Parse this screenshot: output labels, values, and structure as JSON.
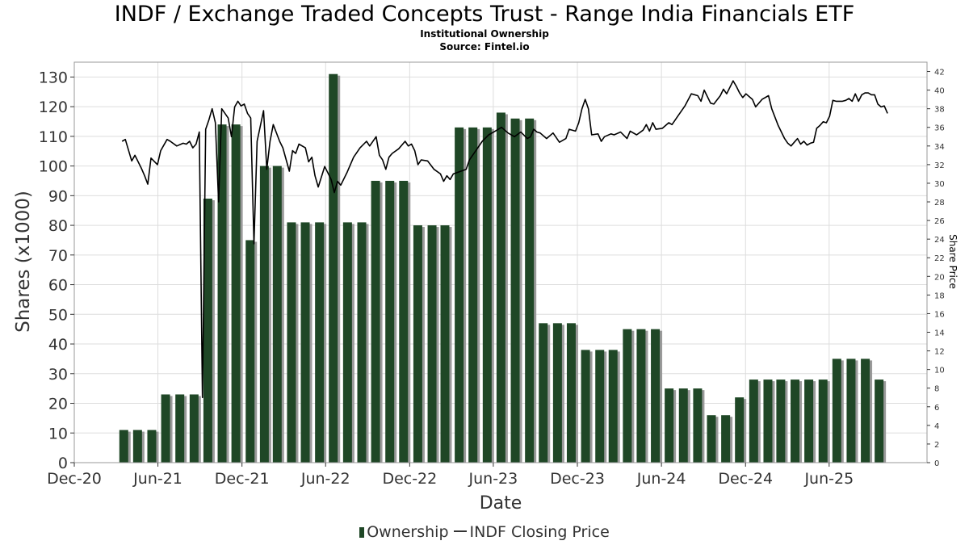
{
  "title": "INDF / Exchange Traded Concepts Trust - Range India Financials ETF",
  "subtitle": "Institutional Ownership",
  "source": "Source: Fintel.io",
  "legend": {
    "bars": "Ownership",
    "line": "INDF Closing Price"
  },
  "colors": {
    "bar": "#1f4726",
    "bar_shadow": "#9a9a9a",
    "line": "#000000",
    "grid": "#dddddd"
  },
  "chart_data": {
    "type": "bar",
    "xlabel": "Date",
    "ylabel": "Shares (x1000)",
    "y2label": "Share Price",
    "xlim": [
      "2020-12-01",
      "2025-12-31"
    ],
    "ylim": [
      0,
      135
    ],
    "y2lim": [
      0,
      43
    ],
    "x_ticks": [
      "Dec-20",
      "Jun-21",
      "Dec-21",
      "Jun-22",
      "Dec-22",
      "Jun-23",
      "Dec-23",
      "Jun-24",
      "Dec-24",
      "Jun-25"
    ],
    "y_ticks": [
      0,
      10,
      20,
      30,
      40,
      50,
      60,
      70,
      80,
      90,
      100,
      110,
      120,
      130
    ],
    "y2_ticks": [
      0,
      2,
      4,
      6,
      8,
      10,
      12,
      14,
      16,
      18,
      20,
      22,
      24,
      26,
      28,
      30,
      32,
      34,
      36,
      38,
      40,
      42
    ],
    "grid": true,
    "legend_position": "bottom",
    "series": [
      {
        "name": "Ownership",
        "type": "bar",
        "axis": "left",
        "points": [
          {
            "x": "2021-03-31",
            "y": 11
          },
          {
            "x": "2021-04-30",
            "y": 11
          },
          {
            "x": "2021-05-31",
            "y": 11
          },
          {
            "x": "2021-06-30",
            "y": 23
          },
          {
            "x": "2021-07-31",
            "y": 23
          },
          {
            "x": "2021-08-31",
            "y": 23
          },
          {
            "x": "2021-09-30",
            "y": 89
          },
          {
            "x": "2021-10-31",
            "y": 114
          },
          {
            "x": "2021-11-30",
            "y": 114
          },
          {
            "x": "2021-12-31",
            "y": 75
          },
          {
            "x": "2022-01-31",
            "y": 100
          },
          {
            "x": "2022-02-28",
            "y": 100
          },
          {
            "x": "2022-03-31",
            "y": 81
          },
          {
            "x": "2022-04-30",
            "y": 81
          },
          {
            "x": "2022-05-31",
            "y": 81
          },
          {
            "x": "2022-06-30",
            "y": 131
          },
          {
            "x": "2022-07-31",
            "y": 81
          },
          {
            "x": "2022-08-31",
            "y": 81
          },
          {
            "x": "2022-09-30",
            "y": 95
          },
          {
            "x": "2022-10-31",
            "y": 95
          },
          {
            "x": "2022-11-30",
            "y": 95
          },
          {
            "x": "2022-12-31",
            "y": 80
          },
          {
            "x": "2023-01-31",
            "y": 80
          },
          {
            "x": "2023-02-28",
            "y": 80
          },
          {
            "x": "2023-03-31",
            "y": 113
          },
          {
            "x": "2023-04-30",
            "y": 113
          },
          {
            "x": "2023-05-31",
            "y": 113
          },
          {
            "x": "2023-06-30",
            "y": 118
          },
          {
            "x": "2023-07-31",
            "y": 116
          },
          {
            "x": "2023-08-31",
            "y": 116
          },
          {
            "x": "2023-09-30",
            "y": 47
          },
          {
            "x": "2023-10-31",
            "y": 47
          },
          {
            "x": "2023-11-30",
            "y": 47
          },
          {
            "x": "2023-12-31",
            "y": 38
          },
          {
            "x": "2024-01-31",
            "y": 38
          },
          {
            "x": "2024-02-29",
            "y": 38
          },
          {
            "x": "2024-03-31",
            "y": 45
          },
          {
            "x": "2024-04-30",
            "y": 45
          },
          {
            "x": "2024-05-31",
            "y": 45
          },
          {
            "x": "2024-06-30",
            "y": 25
          },
          {
            "x": "2024-07-31",
            "y": 25
          },
          {
            "x": "2024-08-31",
            "y": 25
          },
          {
            "x": "2024-09-30",
            "y": 16
          },
          {
            "x": "2024-10-31",
            "y": 16
          },
          {
            "x": "2024-11-30",
            "y": 22
          },
          {
            "x": "2024-12-31",
            "y": 28
          },
          {
            "x": "2025-01-31",
            "y": 28
          },
          {
            "x": "2025-02-28",
            "y": 28
          },
          {
            "x": "2025-03-31",
            "y": 28
          },
          {
            "x": "2025-04-30",
            "y": 28
          },
          {
            "x": "2025-05-31",
            "y": 28
          },
          {
            "x": "2025-06-30",
            "y": 35
          },
          {
            "x": "2025-07-31",
            "y": 35
          },
          {
            "x": "2025-08-31",
            "y": 35
          },
          {
            "x": "2025-09-30",
            "y": 28
          }
        ]
      },
      {
        "name": "INDF Closing Price",
        "type": "line",
        "axis": "right",
        "points": [
          {
            "x": "2021-03-15",
            "y": 34.5
          },
          {
            "x": "2021-03-22",
            "y": 34.7
          },
          {
            "x": "2021-04-05",
            "y": 32.4
          },
          {
            "x": "2021-04-12",
            "y": 33.0
          },
          {
            "x": "2021-04-26",
            "y": 31.6
          },
          {
            "x": "2021-05-03",
            "y": 30.8
          },
          {
            "x": "2021-05-10",
            "y": 29.9
          },
          {
            "x": "2021-05-17",
            "y": 32.7
          },
          {
            "x": "2021-05-31",
            "y": 32.0
          },
          {
            "x": "2021-06-07",
            "y": 33.5
          },
          {
            "x": "2021-06-21",
            "y": 34.7
          },
          {
            "x": "2021-06-28",
            "y": 34.5
          },
          {
            "x": "2021-07-12",
            "y": 34.0
          },
          {
            "x": "2021-07-26",
            "y": 34.3
          },
          {
            "x": "2021-08-02",
            "y": 34.2
          },
          {
            "x": "2021-08-09",
            "y": 34.5
          },
          {
            "x": "2021-08-16",
            "y": 33.8
          },
          {
            "x": "2021-08-23",
            "y": 34.2
          },
          {
            "x": "2021-08-30",
            "y": 35.5
          },
          {
            "x": "2021-09-06",
            "y": 7.0
          },
          {
            "x": "2021-09-13",
            "y": 35.8
          },
          {
            "x": "2021-09-20",
            "y": 36.8
          },
          {
            "x": "2021-09-27",
            "y": 38.0
          },
          {
            "x": "2021-10-04",
            "y": 36.5
          },
          {
            "x": "2021-10-11",
            "y": 28.0
          },
          {
            "x": "2021-10-18",
            "y": 38.0
          },
          {
            "x": "2021-10-25",
            "y": 37.5
          },
          {
            "x": "2021-11-01",
            "y": 37.0
          },
          {
            "x": "2021-11-08",
            "y": 35.0
          },
          {
            "x": "2021-11-15",
            "y": 38.2
          },
          {
            "x": "2021-11-22",
            "y": 38.8
          },
          {
            "x": "2021-11-29",
            "y": 38.3
          },
          {
            "x": "2021-12-06",
            "y": 38.5
          },
          {
            "x": "2021-12-13",
            "y": 37.5
          },
          {
            "x": "2021-12-20",
            "y": 37.0
          },
          {
            "x": "2021-12-27",
            "y": 23.5
          },
          {
            "x": "2022-01-03",
            "y": 34.5
          },
          {
            "x": "2022-01-17",
            "y": 37.8
          },
          {
            "x": "2022-01-24",
            "y": 31.5
          },
          {
            "x": "2022-01-31",
            "y": 34.5
          },
          {
            "x": "2022-02-07",
            "y": 36.3
          },
          {
            "x": "2022-02-21",
            "y": 34.5
          },
          {
            "x": "2022-02-28",
            "y": 33.8
          },
          {
            "x": "2022-03-14",
            "y": 31.3
          },
          {
            "x": "2022-03-21",
            "y": 33.5
          },
          {
            "x": "2022-03-28",
            "y": 33.2
          },
          {
            "x": "2022-04-04",
            "y": 34.2
          },
          {
            "x": "2022-04-18",
            "y": 33.8
          },
          {
            "x": "2022-04-25",
            "y": 32.3
          },
          {
            "x": "2022-05-02",
            "y": 32.8
          },
          {
            "x": "2022-05-09",
            "y": 30.8
          },
          {
            "x": "2022-05-16",
            "y": 29.6
          },
          {
            "x": "2022-05-30",
            "y": 31.8
          },
          {
            "x": "2022-06-13",
            "y": 30.4
          },
          {
            "x": "2022-06-20",
            "y": 29.0
          },
          {
            "x": "2022-06-27",
            "y": 30.2
          },
          {
            "x": "2022-07-04",
            "y": 29.8
          },
          {
            "x": "2022-07-18",
            "y": 31.2
          },
          {
            "x": "2022-08-01",
            "y": 32.8
          },
          {
            "x": "2022-08-15",
            "y": 33.8
          },
          {
            "x": "2022-08-29",
            "y": 34.5
          },
          {
            "x": "2022-09-05",
            "y": 34.0
          },
          {
            "x": "2022-09-19",
            "y": 35.0
          },
          {
            "x": "2022-09-26",
            "y": 33.0
          },
          {
            "x": "2022-10-03",
            "y": 32.5
          },
          {
            "x": "2022-10-10",
            "y": 31.5
          },
          {
            "x": "2022-10-17",
            "y": 32.8
          },
          {
            "x": "2022-10-24",
            "y": 33.2
          },
          {
            "x": "2022-11-07",
            "y": 33.7
          },
          {
            "x": "2022-11-21",
            "y": 34.5
          },
          {
            "x": "2022-11-28",
            "y": 34.0
          },
          {
            "x": "2022-12-05",
            "y": 34.2
          },
          {
            "x": "2022-12-12",
            "y": 33.5
          },
          {
            "x": "2022-12-19",
            "y": 32.0
          },
          {
            "x": "2022-12-26",
            "y": 32.5
          },
          {
            "x": "2023-01-09",
            "y": 32.4
          },
          {
            "x": "2023-01-23",
            "y": 31.5
          },
          {
            "x": "2023-02-06",
            "y": 31.0
          },
          {
            "x": "2023-02-13",
            "y": 30.2
          },
          {
            "x": "2023-02-20",
            "y": 30.8
          },
          {
            "x": "2023-02-27",
            "y": 30.4
          },
          {
            "x": "2023-03-06",
            "y": 31.0
          },
          {
            "x": "2023-04-03",
            "y": 31.5
          },
          {
            "x": "2023-04-10",
            "y": 32.5
          },
          {
            "x": "2023-04-24",
            "y": 33.5
          },
          {
            "x": "2023-05-08",
            "y": 34.5
          },
          {
            "x": "2023-05-22",
            "y": 35.2
          },
          {
            "x": "2023-06-05",
            "y": 35.6
          },
          {
            "x": "2023-06-19",
            "y": 36.0
          },
          {
            "x": "2023-07-03",
            "y": 35.4
          },
          {
            "x": "2023-07-17",
            "y": 35.0
          },
          {
            "x": "2023-07-31",
            "y": 35.5
          },
          {
            "x": "2023-08-14",
            "y": 34.8
          },
          {
            "x": "2023-08-21",
            "y": 35.0
          },
          {
            "x": "2023-08-28",
            "y": 35.8
          },
          {
            "x": "2023-09-04",
            "y": 35.5
          },
          {
            "x": "2023-09-11",
            "y": 35.4
          },
          {
            "x": "2023-09-25",
            "y": 34.8
          },
          {
            "x": "2023-10-09",
            "y": 35.4
          },
          {
            "x": "2023-10-23",
            "y": 34.4
          },
          {
            "x": "2023-11-06",
            "y": 34.8
          },
          {
            "x": "2023-11-13",
            "y": 35.8
          },
          {
            "x": "2023-11-27",
            "y": 35.6
          },
          {
            "x": "2023-12-04",
            "y": 36.5
          },
          {
            "x": "2023-12-11",
            "y": 38.0
          },
          {
            "x": "2023-12-18",
            "y": 39.0
          },
          {
            "x": "2023-12-25",
            "y": 38.0
          },
          {
            "x": "2024-01-01",
            "y": 35.2
          },
          {
            "x": "2024-01-15",
            "y": 35.3
          },
          {
            "x": "2024-01-22",
            "y": 34.5
          },
          {
            "x": "2024-01-29",
            "y": 35.0
          },
          {
            "x": "2024-02-12",
            "y": 35.3
          },
          {
            "x": "2024-02-19",
            "y": 35.2
          },
          {
            "x": "2024-03-04",
            "y": 35.5
          },
          {
            "x": "2024-03-18",
            "y": 34.8
          },
          {
            "x": "2024-03-25",
            "y": 35.6
          },
          {
            "x": "2024-04-08",
            "y": 35.2
          },
          {
            "x": "2024-04-22",
            "y": 35.7
          },
          {
            "x": "2024-04-29",
            "y": 36.3
          },
          {
            "x": "2024-05-06",
            "y": 35.6
          },
          {
            "x": "2024-05-13",
            "y": 36.5
          },
          {
            "x": "2024-05-20",
            "y": 35.8
          },
          {
            "x": "2024-06-03",
            "y": 35.9
          },
          {
            "x": "2024-06-17",
            "y": 36.5
          },
          {
            "x": "2024-06-24",
            "y": 36.3
          },
          {
            "x": "2024-07-08",
            "y": 37.3
          },
          {
            "x": "2024-07-22",
            "y": 38.3
          },
          {
            "x": "2024-08-05",
            "y": 39.6
          },
          {
            "x": "2024-08-19",
            "y": 39.4
          },
          {
            "x": "2024-08-26",
            "y": 38.8
          },
          {
            "x": "2024-09-02",
            "y": 40.0
          },
          {
            "x": "2024-09-16",
            "y": 38.6
          },
          {
            "x": "2024-09-23",
            "y": 38.5
          },
          {
            "x": "2024-10-07",
            "y": 39.4
          },
          {
            "x": "2024-10-14",
            "y": 40.1
          },
          {
            "x": "2024-10-21",
            "y": 39.6
          },
          {
            "x": "2024-11-04",
            "y": 41.0
          },
          {
            "x": "2024-11-11",
            "y": 40.4
          },
          {
            "x": "2024-11-18",
            "y": 39.7
          },
          {
            "x": "2024-11-25",
            "y": 39.2
          },
          {
            "x": "2024-12-02",
            "y": 39.6
          },
          {
            "x": "2024-12-16",
            "y": 39.0
          },
          {
            "x": "2024-12-23",
            "y": 38.2
          },
          {
            "x": "2025-01-06",
            "y": 39.0
          },
          {
            "x": "2025-01-20",
            "y": 39.4
          },
          {
            "x": "2025-01-27",
            "y": 38.0
          },
          {
            "x": "2025-02-10",
            "y": 36.2
          },
          {
            "x": "2025-02-24",
            "y": 34.8
          },
          {
            "x": "2025-03-03",
            "y": 34.3
          },
          {
            "x": "2025-03-10",
            "y": 34.0
          },
          {
            "x": "2025-03-17",
            "y": 34.4
          },
          {
            "x": "2025-03-24",
            "y": 34.8
          },
          {
            "x": "2025-03-31",
            "y": 34.2
          },
          {
            "x": "2025-04-07",
            "y": 34.5
          },
          {
            "x": "2025-04-14",
            "y": 34.1
          },
          {
            "x": "2025-04-21",
            "y": 34.3
          },
          {
            "x": "2025-04-28",
            "y": 34.4
          },
          {
            "x": "2025-05-05",
            "y": 35.9
          },
          {
            "x": "2025-05-12",
            "y": 36.2
          },
          {
            "x": "2025-05-19",
            "y": 36.6
          },
          {
            "x": "2025-05-26",
            "y": 36.5
          },
          {
            "x": "2025-06-02",
            "y": 37.2
          },
          {
            "x": "2025-06-09",
            "y": 38.9
          },
          {
            "x": "2025-06-16",
            "y": 38.8
          },
          {
            "x": "2025-06-30",
            "y": 38.8
          },
          {
            "x": "2025-07-07",
            "y": 38.9
          },
          {
            "x": "2025-07-14",
            "y": 39.1
          },
          {
            "x": "2025-07-21",
            "y": 38.8
          },
          {
            "x": "2025-07-28",
            "y": 39.6
          },
          {
            "x": "2025-08-04",
            "y": 38.8
          },
          {
            "x": "2025-08-11",
            "y": 39.5
          },
          {
            "x": "2025-08-18",
            "y": 39.7
          },
          {
            "x": "2025-08-25",
            "y": 39.7
          },
          {
            "x": "2025-09-01",
            "y": 39.5
          },
          {
            "x": "2025-09-08",
            "y": 39.5
          },
          {
            "x": "2025-09-15",
            "y": 38.5
          },
          {
            "x": "2025-09-22",
            "y": 38.2
          },
          {
            "x": "2025-09-29",
            "y": 38.3
          },
          {
            "x": "2025-10-06",
            "y": 37.5
          }
        ]
      }
    ]
  }
}
